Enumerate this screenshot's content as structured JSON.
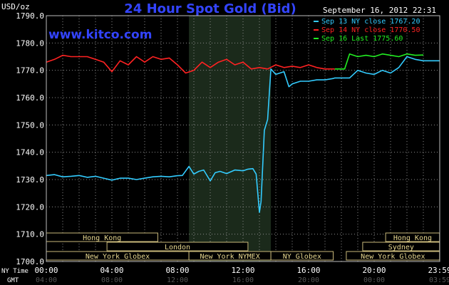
{
  "chart_data": {
    "type": "line",
    "title": "24 Hour Spot Gold (Bid)",
    "watermark": "www.kitco.com",
    "ylabel": "USD/oz",
    "date_label": "September 16, 2012 22:31",
    "ylim": [
      1700,
      1790
    ],
    "yticks": [
      "1700.0",
      "1710.0",
      "1720.0",
      "1730.0",
      "1740.0",
      "1750.0",
      "1760.0",
      "1770.0",
      "1780.0",
      "1790.0"
    ],
    "x_row_label": "NY Time",
    "x_row2_label": "GMT",
    "x_ticks": [
      {
        "h": 0,
        "ny": "00:00",
        "gmt": "04:00"
      },
      {
        "h": 4,
        "ny": "04:00",
        "gmt": "08:00"
      },
      {
        "h": 8,
        "ny": "08:00",
        "gmt": "12:00"
      },
      {
        "h": 12,
        "ny": "12:00",
        "gmt": "16:00"
      },
      {
        "h": 16,
        "ny": "16:00",
        "gmt": "20:00"
      },
      {
        "h": 20,
        "ny": "20:00",
        "gmt": "00:00"
      },
      {
        "h": 24,
        "ny": "23:59",
        "gmt": "03:59"
      }
    ],
    "highlight": [
      8.7,
      13.7
    ],
    "series": [
      {
        "name": "Sep 13 NY close 1767.20",
        "color": "#33ccff",
        "x": [
          0,
          0.5,
          1,
          1.5,
          2,
          2.5,
          3,
          3.5,
          4,
          4.5,
          5,
          5.5,
          6,
          6.5,
          7,
          7.5,
          8,
          8.3,
          8.7,
          9.0,
          9.3,
          9.6,
          10.0,
          10.3,
          10.6,
          11.0,
          11.5,
          12.0,
          12.3,
          12.6,
          12.8,
          13.0,
          13.1,
          13.3,
          13.5,
          13.7,
          14.0,
          14.5,
          14.8,
          15.0,
          15.5,
          16.0,
          16.5,
          17.0,
          17.5,
          17.6,
          18.5,
          19.0,
          19.5,
          20.0,
          20.5,
          21.0,
          21.5,
          22.0,
          22.5,
          23.0,
          23.5,
          23.99
        ],
        "y": [
          1731.5,
          1731.8,
          1731,
          1731.2,
          1731.5,
          1730.8,
          1731.2,
          1730.5,
          1729.8,
          1730.5,
          1730.5,
          1730,
          1730.5,
          1731,
          1731.2,
          1731,
          1731.4,
          1731.5,
          1734.8,
          1732,
          1733,
          1733.5,
          1729.5,
          1732.5,
          1733,
          1732.2,
          1733.5,
          1733.2,
          1733.8,
          1734,
          1732,
          1718,
          1722,
          1748,
          1752,
          1770.5,
          1768.5,
          1769.5,
          1764,
          1765,
          1766,
          1766,
          1766.5,
          1766.5,
          1767,
          1767.2,
          1767.2,
          1770,
          1769,
          1768.5,
          1770,
          1769,
          1771,
          1775,
          1774,
          1773.5,
          1773.5,
          1773.5
        ]
      },
      {
        "name": "Sep 14 NY close 1770.50",
        "color": "#ff2222",
        "x": [
          0,
          0.5,
          1,
          1.5,
          2,
          2.5,
          3,
          3.5,
          4,
          4.5,
          5,
          5.5,
          6,
          6.5,
          7,
          7.5,
          8,
          8.5,
          9,
          9.5,
          10,
          10.5,
          11,
          11.5,
          12,
          12.5,
          13,
          13.5,
          14,
          14.5,
          15,
          15.5,
          16,
          16.5,
          17,
          17.6
        ],
        "y": [
          1773,
          1774,
          1775.5,
          1775,
          1775,
          1775,
          1774,
          1773,
          1769.5,
          1773.5,
          1772,
          1775,
          1773,
          1775,
          1774,
          1774.5,
          1772,
          1769,
          1770,
          1773,
          1771,
          1773,
          1774,
          1772,
          1773,
          1770.5,
          1771,
          1770.5,
          1772,
          1771,
          1771.5,
          1771,
          1772,
          1771,
          1770.5,
          1770.5
        ]
      },
      {
        "name": "Sep 16 Last 1775.60",
        "color": "#22ee22",
        "x": [
          17.6,
          18.2,
          18.5,
          19,
          19.5,
          20,
          20.5,
          21,
          21.5,
          22,
          22.5,
          23
        ],
        "y": [
          1770.5,
          1770.5,
          1776,
          1775,
          1775.5,
          1775,
          1776,
          1775.5,
          1775,
          1776,
          1775.5,
          1775.6
        ]
      }
    ],
    "market_bars": [
      {
        "label": "Hong Kong",
        "x0": 0,
        "x1": 6.8,
        "row": 0
      },
      {
        "label": "Hong Kong",
        "x0": 20.7,
        "x1": 23.99,
        "row": 0
      },
      {
        "label": "London",
        "x0": 3.7,
        "x1": 12.3,
        "row": 1
      },
      {
        "label": "Sydney",
        "x0": 19.3,
        "x1": 23.99,
        "row": 1
      },
      {
        "label": "New York Globex",
        "x0": 0,
        "x1": 8.7,
        "row": 2
      },
      {
        "label": "New York NYMEX",
        "x0": 8.7,
        "x1": 13.7,
        "row": 2
      },
      {
        "label": "NY Globex",
        "x0": 13.7,
        "x1": 17.5,
        "row": 2
      },
      {
        "label": "New York Globex",
        "x0": 18.3,
        "x1": 23.99,
        "row": 2
      }
    ]
  }
}
